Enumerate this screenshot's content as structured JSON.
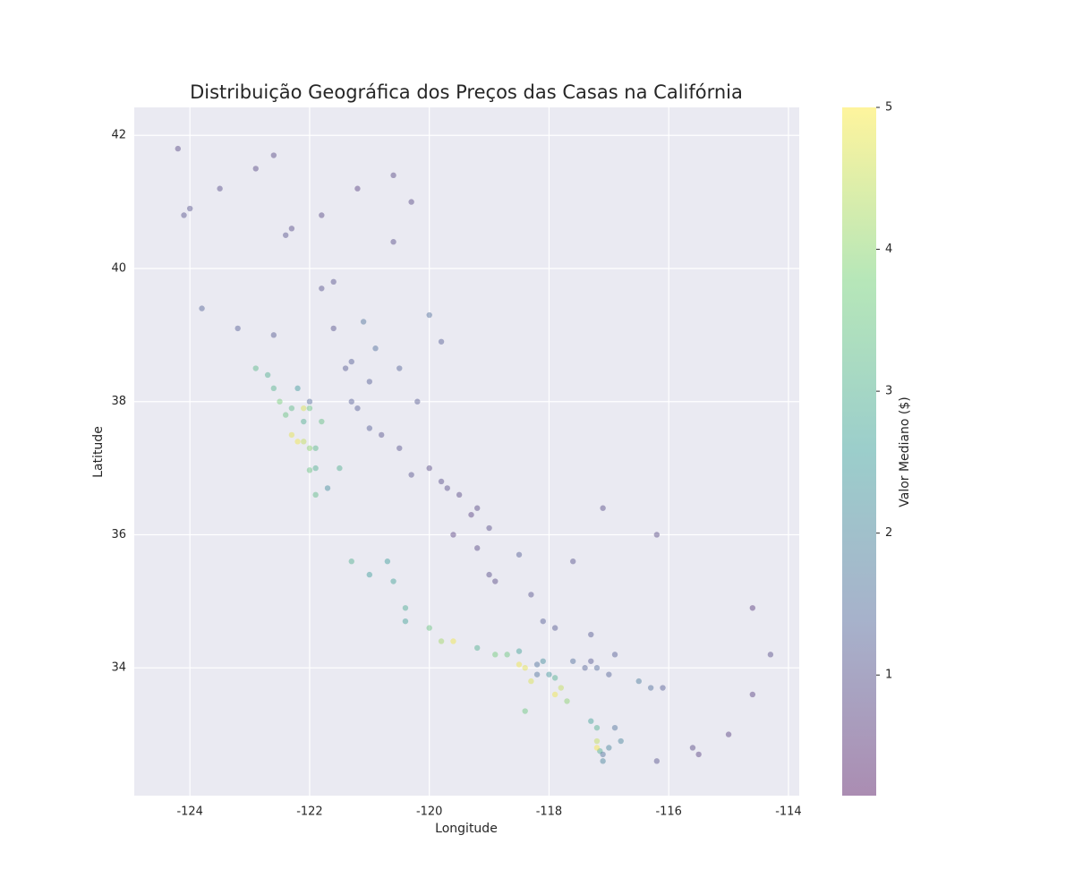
{
  "chart_data": {
    "type": "scatter",
    "title": "Distribuição Geográfica dos Preços das Casas na Califórnia",
    "x_label": "Longitude",
    "y_label": "Latitude",
    "colorbar_label": "Valor Mediano ($)",
    "xlim": [
      -124.93,
      -113.82
    ],
    "ylim": [
      32.08,
      42.42
    ],
    "xticks": [
      -124,
      -122,
      -120,
      -118,
      -116,
      -114
    ],
    "yticks": [
      34,
      36,
      38,
      40,
      42
    ],
    "clim": [
      0.15,
      5.0
    ],
    "cticks": [
      1,
      2,
      3,
      4,
      5
    ],
    "colormap": "viridis",
    "alpha": 0.4,
    "grid": true,
    "x": [
      -124.2,
      -124.1,
      -124.0,
      -123.5,
      -122.9,
      -122.6,
      -122.3,
      -122.4,
      -121.8,
      -121.2,
      -120.6,
      -120.3,
      -120.6,
      -123.8,
      -123.2,
      -122.6,
      -121.6,
      -121.8,
      -121.6,
      -121.1,
      -120.9,
      -120.0,
      -119.8,
      -121.3,
      -121.4,
      -121.0,
      -120.5,
      -120.2,
      -122.4,
      -122.3,
      -122.2,
      -122.1,
      -122.0,
      -121.9,
      -122.1,
      -122.0,
      -122.1,
      -122.3,
      -122.5,
      -122.6,
      -122.7,
      -122.9,
      -122.2,
      -121.8,
      -121.7,
      -121.9,
      -121.9,
      -122.0,
      -121.5,
      -122.0,
      -121.3,
      -121.2,
      -121.0,
      -120.8,
      -120.5,
      -119.8,
      -119.7,
      -119.5,
      -119.3,
      -119.2,
      -119.0,
      -119.0,
      -118.9,
      -119.6,
      -120.0,
      -120.3,
      -119.2,
      -118.5,
      -118.3,
      -117.6,
      -117.1,
      -116.2,
      -120.7,
      -120.6,
      -120.4,
      -120.4,
      -120.0,
      -119.8,
      -119.6,
      -119.2,
      -118.9,
      -121.3,
      -121.0,
      -118.5,
      -118.4,
      -118.3,
      -118.2,
      -118.2,
      -118.1,
      -118.0,
      -117.9,
      -117.8,
      -117.9,
      -117.7,
      -117.6,
      -117.4,
      -117.3,
      -117.2,
      -117.0,
      -118.7,
      -118.5,
      -118.1,
      -117.9,
      -117.3,
      -116.9,
      -116.5,
      -116.3,
      -116.1,
      -115.6,
      -115.5,
      -114.6,
      -114.6,
      -114.3,
      -115.0,
      -118.4,
      -117.2,
      -117.15,
      -117.1,
      -117.1,
      -117.2,
      -117.0,
      -117.2,
      -117.3,
      -116.8,
      -116.9,
      -116.2
    ],
    "values": [
      41.8,
      40.8,
      40.9,
      41.2,
      41.5,
      41.7,
      40.6,
      40.5,
      40.8,
      41.2,
      41.4,
      41.0,
      40.4,
      39.4,
      39.1,
      39.0,
      39.8,
      39.7,
      39.1,
      39.2,
      38.8,
      39.3,
      38.9,
      38.6,
      38.5,
      38.3,
      38.5,
      38.0,
      37.8,
      37.5,
      37.4,
      37.4,
      37.3,
      37.3,
      37.7,
      37.9,
      37.9,
      37.9,
      38.0,
      38.2,
      38.4,
      38.5,
      38.2,
      37.7,
      36.7,
      36.6,
      37.0,
      36.97,
      37.0,
      38.0,
      38.0,
      37.9,
      37.6,
      37.5,
      37.3,
      36.8,
      36.7,
      36.6,
      36.3,
      36.4,
      36.1,
      35.4,
      35.3,
      36.0,
      37.0,
      36.9,
      35.8,
      35.7,
      35.1,
      35.6,
      36.4,
      36.0,
      35.6,
      35.3,
      34.9,
      34.7,
      34.6,
      34.4,
      34.4,
      34.3,
      34.2,
      35.6,
      35.4,
      34.05,
      34.0,
      33.8,
      33.9,
      34.05,
      34.1,
      33.9,
      33.85,
      33.7,
      33.6,
      33.5,
      34.1,
      34.0,
      34.1,
      34.0,
      33.9,
      34.2,
      34.25,
      34.7,
      34.6,
      34.5,
      34.2,
      33.8,
      33.7,
      33.7,
      32.8,
      32.7,
      34.9,
      33.6,
      34.2,
      33.0,
      33.35,
      32.9,
      32.75,
      32.6,
      32.7,
      32.8,
      32.8,
      33.1,
      33.2,
      32.9,
      33.1,
      32.6
    ],
    "color_values": [
      0.8,
      1.0,
      1.0,
      0.9,
      0.8,
      0.8,
      0.9,
      1.0,
      0.8,
      0.7,
      0.8,
      0.8,
      0.9,
      1.3,
      1.2,
      1.1,
      1.0,
      1.0,
      1.0,
      1.6,
      1.5,
      1.5,
      1.2,
      1.2,
      1.1,
      1.2,
      1.3,
      1.1,
      3.5,
      4.8,
      4.9,
      4.5,
      4.0,
      3.2,
      3.0,
      3.5,
      4.7,
      3.3,
      3.8,
      3.1,
      3.0,
      3.2,
      2.5,
      3.4,
      2.2,
      3.3,
      3.0,
      3.5,
      3.0,
      1.4,
      1.2,
      1.2,
      1.2,
      1.0,
      1.0,
      0.9,
      0.9,
      0.8,
      0.7,
      0.8,
      0.9,
      0.9,
      0.8,
      0.7,
      0.8,
      1.0,
      0.8,
      1.2,
      1.0,
      1.0,
      0.9,
      0.8,
      2.6,
      2.7,
      2.9,
      2.7,
      3.5,
      4.2,
      4.9,
      3.0,
      3.7,
      3.0,
      2.6,
      4.9,
      4.8,
      4.7,
      1.6,
      1.6,
      2.2,
      2.4,
      3.0,
      4.5,
      4.9,
      4.0,
      1.5,
      1.3,
      1.1,
      1.4,
      1.3,
      3.6,
      2.7,
      1.2,
      1.1,
      1.1,
      1.2,
      1.8,
      1.5,
      1.2,
      0.8,
      0.7,
      0.6,
      0.7,
      0.9,
      0.7,
      3.6,
      4.5,
      3.0,
      2.0,
      1.6,
      5.0,
      2.0,
      3.0,
      2.7,
      2.0,
      1.6,
      1.0
    ]
  }
}
